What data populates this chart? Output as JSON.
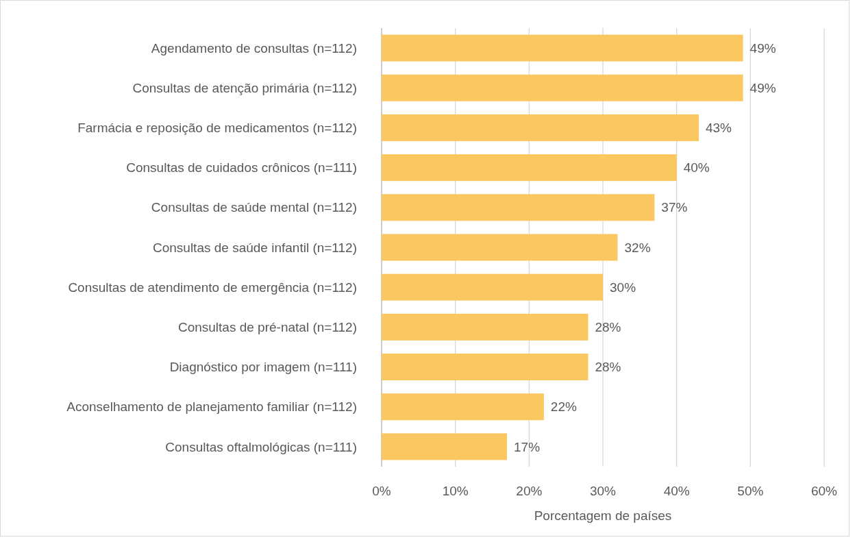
{
  "chart_data": {
    "type": "bar",
    "orientation": "horizontal",
    "categories": [
      "Agendamento de consultas (n=112)",
      "Consultas de atenção primária (n=112)",
      "Farmácia e reposição de medicamentos (n=112)",
      "Consultas de cuidados crônicos (n=111)",
      "Consultas de saúde mental (n=112)",
      "Consultas de saúde infantil (n=112)",
      "Consultas de atendimento de emergência (n=112)",
      "Consultas de pré-natal (n=112)",
      "Diagnóstico por imagem (n=111)",
      "Aconselhamento de planejamento familiar (n=112)",
      "Consultas oftalmológicas (n=111)"
    ],
    "values": [
      49,
      49,
      43,
      40,
      37,
      32,
      30,
      28,
      28,
      22,
      17
    ],
    "value_labels": [
      "49%",
      "49%",
      "43%",
      "40%",
      "37%",
      "32%",
      "30%",
      "28%",
      "28%",
      "22%",
      "17%"
    ],
    "color": "#fac761",
    "xlabel": "Porcentagem de países",
    "xlim": [
      0,
      60
    ],
    "xticks": [
      {
        "value": 0,
        "label": "0%"
      },
      {
        "value": 10,
        "label": "10%"
      },
      {
        "value": 20,
        "label": "20%"
      },
      {
        "value": 30,
        "label": "30%"
      },
      {
        "value": 40,
        "label": "40%"
      },
      {
        "value": 50,
        "label": "50%"
      },
      {
        "value": 60,
        "label": "60%"
      }
    ],
    "grid": "x"
  }
}
